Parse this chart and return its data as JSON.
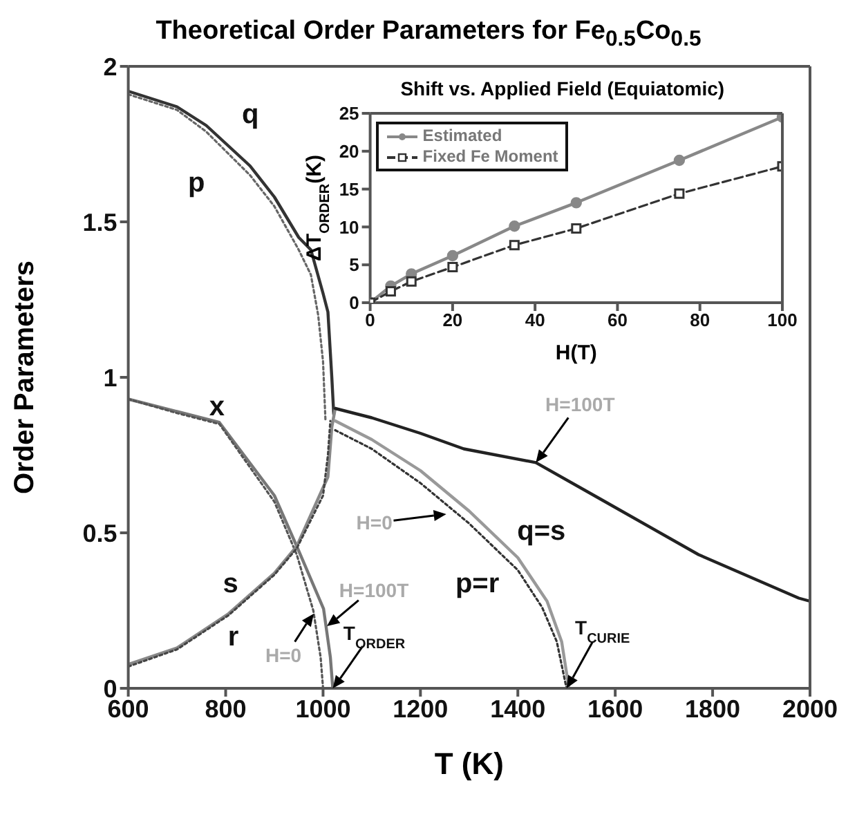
{
  "chart_data": [
    {
      "type": "line",
      "title": "Theoretical Order Parameters for Fe$_{0.5}$Co$_{0.5}$",
      "xlabel": "T (K)",
      "ylabel": "Order Parameters",
      "xlim": [
        600,
        2000
      ],
      "xticks": [
        600,
        800,
        1000,
        1200,
        1400,
        1600,
        1800,
        2000
      ],
      "ylim": [
        0,
        2
      ],
      "yticks": [
        0,
        0.5,
        1,
        1.5,
        2
      ],
      "series": [
        {
          "color": "#333333",
          "line_style": "solid",
          "x": [
            600,
            700,
            760,
            850,
            900,
            950,
            975,
            1000,
            1010,
            1018,
            1022
          ],
          "values": [
            1.92,
            1.87,
            1.81,
            1.68,
            1.58,
            1.45,
            1.41,
            1.27,
            1.21,
            1.0,
            0.88
          ]
        },
        {
          "color": "#666666",
          "line_style": "dotted",
          "x": [
            600,
            700,
            760,
            850,
            900,
            950,
            975,
            990,
            1000,
            1005
          ],
          "values": [
            1.91,
            1.86,
            1.79,
            1.65,
            1.55,
            1.41,
            1.33,
            1.2,
            1.05,
            0.86
          ]
        },
        {
          "color": "#777777",
          "line_style": "solid",
          "x": [
            600,
            700,
            787,
            900,
            946,
            1001,
            1015,
            1020
          ],
          "values": [
            0.93,
            0.89,
            0.855,
            0.62,
            0.457,
            0.256,
            0.1,
            0
          ]
        },
        {
          "color": "#555555",
          "line_style": "dotted",
          "x": [
            600,
            700,
            787,
            900,
            946,
            980,
            995,
            1000
          ],
          "values": [
            0.93,
            0.885,
            0.85,
            0.6,
            0.43,
            0.25,
            0.1,
            0
          ]
        },
        {
          "color": "#888888",
          "line_style": "solid",
          "x": [
            600,
            700,
            806,
            900,
            946,
            1010,
            1018,
            1025
          ],
          "values": [
            0.077,
            0.13,
            0.24,
            0.37,
            0.457,
            0.68,
            0.84,
            0.9
          ]
        },
        {
          "color": "#444444",
          "line_style": "dotted",
          "x": [
            600,
            700,
            806,
            900,
            946,
            1000,
            1010,
            1015
          ],
          "values": [
            0.07,
            0.125,
            0.235,
            0.365,
            0.45,
            0.62,
            0.75,
            0.86
          ]
        },
        {
          "color": "#222222",
          "line_style": "solid",
          "x": [
            1025,
            1100,
            1200,
            1289,
            1437,
            1568,
            1771,
            1977,
            2000
          ],
          "values": [
            0.9,
            0.87,
            0.82,
            0.77,
            0.726,
            0.61,
            0.43,
            0.29,
            0.28
          ]
        },
        {
          "color": "#999999",
          "line_style": "solid",
          "x": [
            1025,
            1100,
            1200,
            1300,
            1400,
            1460,
            1490,
            1505
          ],
          "values": [
            0.86,
            0.8,
            0.7,
            0.57,
            0.42,
            0.28,
            0.15,
            0
          ]
        },
        {
          "color": "#333333",
          "line_style": "dotted",
          "x": [
            1025,
            1100,
            1200,
            1300,
            1400,
            1450,
            1480,
            1500
          ],
          "values": [
            0.83,
            0.77,
            0.66,
            0.53,
            0.38,
            0.26,
            0.15,
            0
          ]
        }
      ],
      "annotations": [
        "q",
        "p",
        "x",
        "s",
        "r",
        "q=s",
        "p=r",
        {
          "text": "H=100T",
          "x": 1437,
          "y": 0.726
        },
        {
          "text": "H=0",
          "x": 1253,
          "y": 0.56
        },
        {
          "text": "H=100T",
          "x": 1008,
          "y": 0.2
        },
        {
          "text": "H=0",
          "x": 981,
          "y": 0.24
        },
        {
          "text": "T$_{ORDER}$",
          "x": 1020,
          "y": 0
        },
        {
          "text": "T$_{CURIE}$",
          "x": 1500,
          "y": 0
        }
      ]
    },
    {
      "type": "line",
      "title": "Shift vs. Applied Field (Equiatomic)",
      "xlabel": "H(T)",
      "ylabel": "ΔT$_{ORDER}$(K)",
      "xlim": [
        0,
        100
      ],
      "xticks": [
        0,
        20,
        40,
        60,
        80,
        100
      ],
      "ylim": [
        0,
        25
      ],
      "yticks": [
        0,
        5,
        10,
        15,
        20,
        25
      ],
      "legend": "top left",
      "series": [
        {
          "name": "Estimated",
          "color": "#888888",
          "line_style": "solid",
          "marker": "circle",
          "x": [
            0,
            5,
            10,
            20,
            35,
            50,
            75,
            100
          ],
          "values": [
            0,
            2.2,
            3.8,
            6.2,
            10.1,
            13.2,
            18.8,
            24.5
          ]
        },
        {
          "name": "Fixed Fe Moment",
          "color": "#333333",
          "line_style": "dashed",
          "marker": "square",
          "x": [
            0,
            5,
            10,
            20,
            35,
            50,
            75,
            100
          ],
          "values": [
            0,
            1.5,
            2.8,
            4.7,
            7.6,
            9.8,
            14.4,
            18
          ]
        }
      ]
    }
  ]
}
